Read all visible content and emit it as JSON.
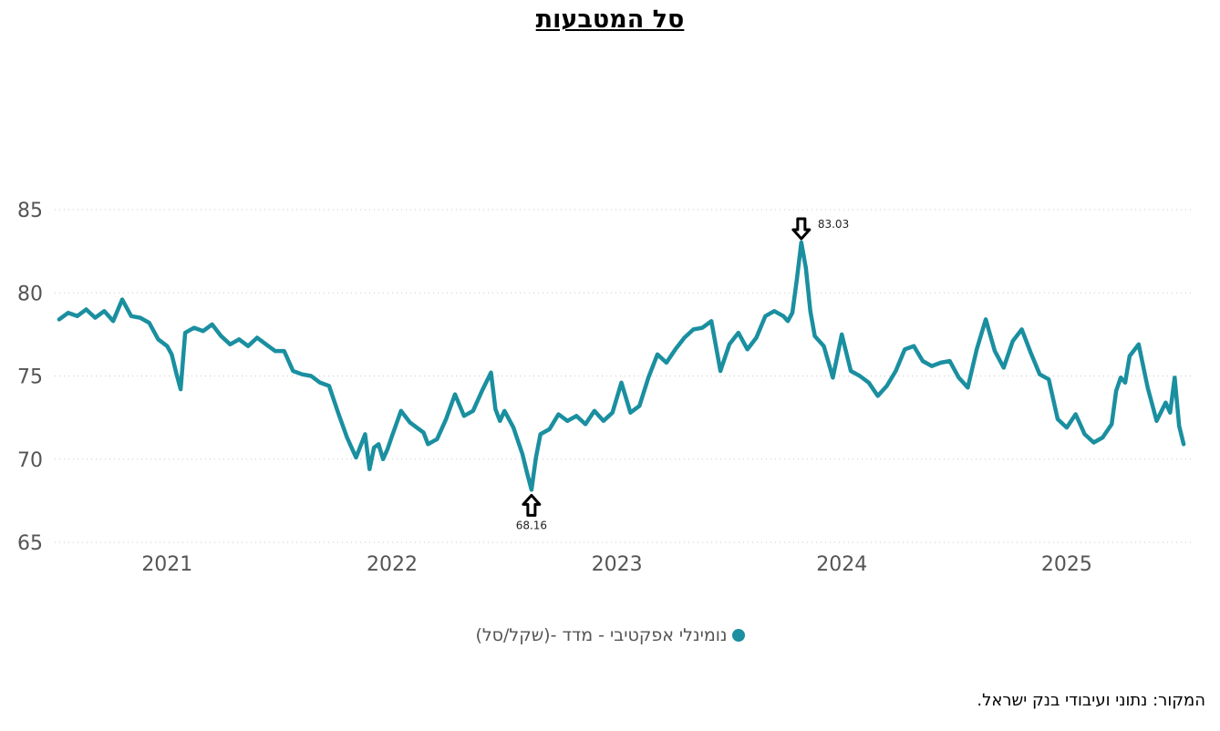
{
  "title": "סל המטבעות",
  "source": "המקור: נתוני ועיבודי בנק ישראל.",
  "legend_label": "נומינלי אפקטיבי - מדד -(שקל/סל)",
  "series_color": "#1a8fa0",
  "chart_data": {
    "type": "line",
    "title": "סל המטבעות",
    "xlabel": "",
    "ylabel": "",
    "ylim": [
      65,
      86
    ],
    "xlim": [
      2020.5,
      2025.56
    ],
    "y_ticks": [
      65,
      70,
      75,
      80,
      85
    ],
    "x_ticks": [
      "2021",
      "2022",
      "2023",
      "2024",
      "2025"
    ],
    "grid": "horizontal dotted",
    "legend_position": "bottom",
    "annotations": [
      {
        "label": "83.03",
        "x": 2023.82,
        "y": 83.03,
        "kind": "max"
      },
      {
        "label": "68.16",
        "x": 2022.62,
        "y": 68.16,
        "kind": "min"
      }
    ],
    "series": [
      {
        "name": "נומינלי אפקטיבי - מדד -(שקל/סל)",
        "x": [
          2020.52,
          2020.56,
          2020.6,
          2020.64,
          2020.68,
          2020.72,
          2020.76,
          2020.8,
          2020.84,
          2020.88,
          2020.92,
          2020.96,
          2021.0,
          2021.02,
          2021.04,
          2021.06,
          2021.08,
          2021.12,
          2021.16,
          2021.2,
          2021.24,
          2021.28,
          2021.32,
          2021.36,
          2021.4,
          2021.44,
          2021.48,
          2021.52,
          2021.56,
          2021.6,
          2021.64,
          2021.68,
          2021.72,
          2021.76,
          2021.8,
          2021.84,
          2021.88,
          2021.9,
          2021.92,
          2021.94,
          2021.96,
          2021.98,
          2022.0,
          2022.04,
          2022.08,
          2022.12,
          2022.14,
          2022.16,
          2022.2,
          2022.24,
          2022.28,
          2022.32,
          2022.36,
          2022.4,
          2022.44,
          2022.46,
          2022.48,
          2022.5,
          2022.54,
          2022.58,
          2022.6,
          2022.62,
          2022.64,
          2022.66,
          2022.7,
          2022.74,
          2022.78,
          2022.82,
          2022.86,
          2022.9,
          2022.94,
          2022.98,
          2023.02,
          2023.06,
          2023.1,
          2023.14,
          2023.18,
          2023.22,
          2023.26,
          2023.3,
          2023.34,
          2023.38,
          2023.42,
          2023.46,
          2023.5,
          2023.54,
          2023.58,
          2023.62,
          2023.66,
          2023.7,
          2023.74,
          2023.76,
          2023.78,
          2023.8,
          2023.82,
          2023.84,
          2023.86,
          2023.88,
          2023.92,
          2023.96,
          2024.0,
          2024.04,
          2024.08,
          2024.12,
          2024.16,
          2024.2,
          2024.24,
          2024.28,
          2024.32,
          2024.36,
          2024.4,
          2024.44,
          2024.48,
          2024.52,
          2024.56,
          2024.6,
          2024.64,
          2024.68,
          2024.72,
          2024.76,
          2024.8,
          2024.84,
          2024.88,
          2024.92,
          2024.96,
          2025.0,
          2025.04,
          2025.08,
          2025.12,
          2025.16,
          2025.2,
          2025.22,
          2025.24,
          2025.26,
          2025.28,
          2025.32,
          2025.36,
          2025.4,
          2025.44,
          2025.46,
          2025.48,
          2025.5,
          2025.52
        ],
        "values": [
          78.4,
          78.8,
          78.6,
          79.0,
          78.5,
          78.9,
          78.3,
          79.6,
          78.6,
          78.5,
          78.2,
          77.2,
          76.8,
          76.3,
          75.2,
          74.2,
          77.6,
          77.9,
          77.7,
          78.1,
          77.4,
          76.9,
          77.2,
          76.8,
          77.3,
          76.9,
          76.5,
          76.5,
          75.3,
          75.1,
          75.0,
          74.6,
          74.4,
          72.8,
          71.3,
          70.1,
          71.5,
          69.4,
          70.7,
          70.9,
          70.0,
          70.6,
          71.4,
          72.9,
          72.2,
          71.8,
          71.6,
          70.9,
          71.2,
          72.4,
          73.9,
          72.6,
          72.9,
          74.1,
          75.2,
          73.0,
          72.3,
          72.9,
          71.9,
          70.3,
          69.2,
          68.16,
          70.1,
          71.5,
          71.8,
          72.7,
          72.3,
          72.6,
          72.1,
          72.9,
          72.3,
          72.8,
          74.6,
          72.8,
          73.2,
          74.9,
          76.3,
          75.8,
          76.6,
          77.3,
          77.8,
          77.9,
          78.3,
          75.3,
          76.9,
          77.6,
          76.6,
          77.3,
          78.6,
          78.9,
          78.6,
          78.3,
          78.8,
          80.8,
          83.03,
          81.5,
          78.9,
          77.4,
          76.8,
          74.9,
          77.5,
          75.3,
          75.0,
          74.6,
          73.8,
          74.4,
          75.3,
          76.6,
          76.8,
          75.9,
          75.6,
          75.8,
          75.9,
          74.9,
          74.3,
          76.6,
          78.4,
          76.5,
          75.5,
          77.1,
          77.8,
          76.4,
          75.1,
          74.8,
          72.4,
          71.9,
          72.7,
          71.5,
          71.0,
          71.3,
          72.1,
          74.1,
          74.9,
          74.6,
          76.2,
          76.9,
          74.3,
          72.3,
          73.4,
          72.8,
          74.9,
          72.0,
          70.9
        ]
      }
    ]
  }
}
